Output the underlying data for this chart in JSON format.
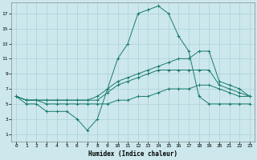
{
  "xlabel": "Humidex (Indice chaleur)",
  "background_color": "#cce8ec",
  "grid_color": "#aad0d8",
  "line_color": "#1a7a6e",
  "xlim": [
    -0.5,
    23.5
  ],
  "ylim": [
    0,
    18.5
  ],
  "xticks": [
    0,
    1,
    2,
    3,
    4,
    5,
    6,
    7,
    8,
    9,
    10,
    11,
    12,
    13,
    14,
    15,
    16,
    17,
    18,
    19,
    20,
    21,
    22,
    23
  ],
  "yticks": [
    1,
    3,
    5,
    7,
    9,
    11,
    13,
    15,
    17
  ],
  "lines": [
    {
      "x": [
        0,
        1,
        2,
        3,
        4,
        5,
        6,
        7,
        8,
        9,
        10,
        11,
        12,
        13,
        14,
        15,
        16,
        17,
        18,
        19,
        20,
        21,
        22,
        23
      ],
      "y": [
        6,
        5,
        5,
        4,
        4,
        4,
        3,
        1.5,
        3,
        7,
        11,
        13,
        17,
        17.5,
        18,
        17,
        14,
        12,
        6,
        5,
        5,
        5,
        5,
        5
      ]
    },
    {
      "x": [
        0,
        1,
        2,
        3,
        4,
        5,
        6,
        7,
        8,
        9,
        10,
        11,
        12,
        13,
        14,
        15,
        16,
        17,
        18,
        19,
        20,
        21,
        22,
        23
      ],
      "y": [
        6,
        5.5,
        5.5,
        5.5,
        5.5,
        5.5,
        5.5,
        5.5,
        6,
        7,
        8,
        8.5,
        9,
        9.5,
        10,
        10.5,
        11,
        11,
        12,
        12,
        8,
        7.5,
        7,
        6
      ]
    },
    {
      "x": [
        0,
        1,
        2,
        3,
        4,
        5,
        6,
        7,
        8,
        9,
        10,
        11,
        12,
        13,
        14,
        15,
        16,
        17,
        18,
        19,
        20,
        21,
        22,
        23
      ],
      "y": [
        6,
        5.5,
        5.5,
        5.5,
        5.5,
        5.5,
        5.5,
        5.5,
        5.5,
        6.5,
        7.5,
        8,
        8.5,
        9,
        9.5,
        9.5,
        9.5,
        9.5,
        9.5,
        9.5,
        7.5,
        7,
        6.5,
        6
      ]
    },
    {
      "x": [
        0,
        1,
        2,
        3,
        4,
        5,
        6,
        7,
        8,
        9,
        10,
        11,
        12,
        13,
        14,
        15,
        16,
        17,
        18,
        19,
        20,
        21,
        22,
        23
      ],
      "y": [
        6,
        5.5,
        5.5,
        5,
        5,
        5,
        5,
        5,
        5,
        5,
        5.5,
        5.5,
        6,
        6,
        6.5,
        7,
        7,
        7,
        7.5,
        7.5,
        7,
        6.5,
        6,
        6
      ]
    }
  ]
}
